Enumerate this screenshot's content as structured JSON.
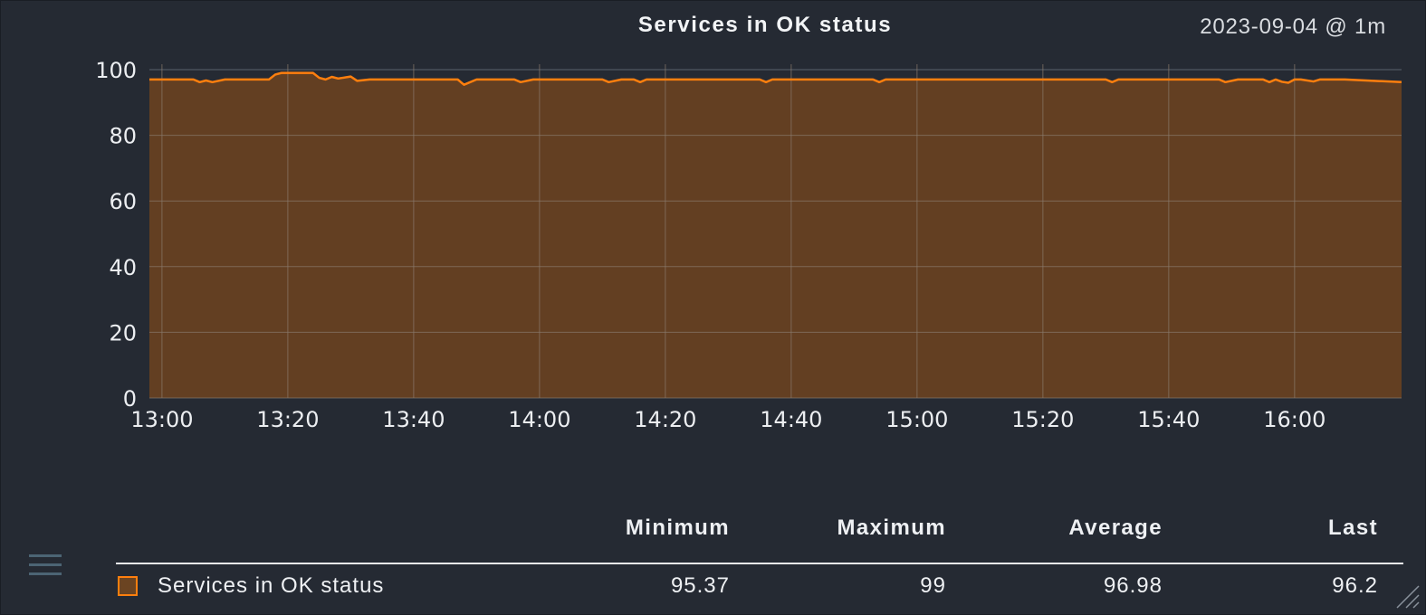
{
  "header": {
    "title": "Services in OK status",
    "timestamp": "2023-09-04 @ 1m"
  },
  "legend": {
    "columns": {
      "min": "Minimum",
      "max": "Maximum",
      "avg": "Average",
      "last": "Last"
    },
    "rows": [
      {
        "name": "Services in OK status",
        "min": "95.37",
        "max": "99",
        "avg": "96.98",
        "last": "96.2"
      }
    ]
  },
  "colors": {
    "background": "#252a33",
    "line": "#ff7f0e",
    "area": "#633f22",
    "grid": "#8a7a6c"
  },
  "icons": {
    "menu": "hamburger-menu-icon",
    "resize": "resize-handle-icon"
  },
  "chart_data": {
    "type": "area",
    "title": "Services in OK status",
    "xlabel": "",
    "ylabel": "",
    "ylim": [
      0,
      100
    ],
    "yticks": [
      0,
      20,
      40,
      60,
      80,
      100
    ],
    "xlim": [
      "12:58",
      "16:17"
    ],
    "xticks": [
      "13:00",
      "13:20",
      "13:40",
      "14:00",
      "14:20",
      "14:40",
      "15:00",
      "15:20",
      "15:40",
      "16:00"
    ],
    "grid": true,
    "series": [
      {
        "name": "Services in OK status",
        "x": [
          "12:58",
          "13:05",
          "13:06",
          "13:07",
          "13:08",
          "13:10",
          "13:12",
          "13:15",
          "13:17",
          "13:18",
          "13:19",
          "13:20",
          "13:22",
          "13:24",
          "13:25",
          "13:26",
          "13:27",
          "13:28",
          "13:30",
          "13:31",
          "13:33",
          "13:40",
          "13:42",
          "13:45",
          "13:47",
          "13:48",
          "13:50",
          "13:53",
          "13:56",
          "13:57",
          "13:59",
          "14:10",
          "14:11",
          "14:13",
          "14:15",
          "14:16",
          "14:17",
          "14:35",
          "14:36",
          "14:37",
          "14:39",
          "14:53",
          "14:54",
          "14:55",
          "14:57",
          "15:30",
          "15:31",
          "15:32",
          "15:33",
          "15:48",
          "15:49",
          "15:51",
          "15:55",
          "15:56",
          "15:57",
          "15:58",
          "15:59",
          "16:00",
          "16:01",
          "16:03",
          "16:04",
          "16:05",
          "16:08",
          "16:17"
        ],
        "y": [
          97,
          97,
          96.2,
          96.7,
          96.2,
          97,
          97,
          97,
          97,
          98.5,
          99,
          99,
          99,
          99,
          97.5,
          97,
          97.8,
          97.3,
          97.9,
          96.6,
          97,
          97,
          97,
          97,
          97,
          95.4,
          97,
          97,
          97,
          96.2,
          97,
          97,
          96.2,
          97,
          97,
          96.2,
          97,
          97,
          96.2,
          97,
          97,
          97,
          96.2,
          97,
          97,
          97,
          96.2,
          97,
          97,
          97,
          96.2,
          97,
          97,
          96.2,
          97,
          96.3,
          96,
          97,
          97,
          96.4,
          97,
          97,
          97,
          96.2
        ]
      }
    ]
  }
}
